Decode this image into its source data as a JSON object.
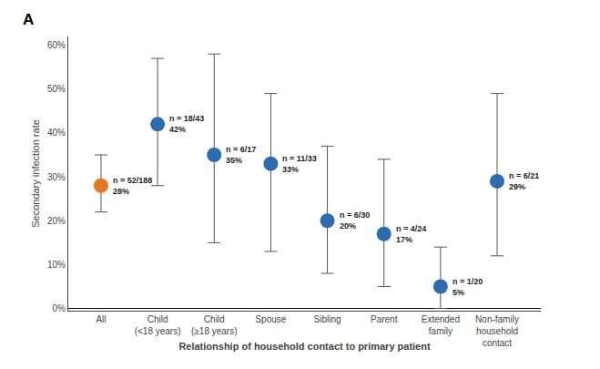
{
  "chart_data": {
    "type": "scatter",
    "categories": [
      "All",
      "Child\n(<18 years)",
      "Child\n(≥18 years)",
      "Spouse",
      "Sibling",
      "Parent",
      "Extended\nfamily",
      "Non-family\nhousehold\ncontact"
    ],
    "values": [
      0.28,
      0.42,
      0.35,
      0.33,
      0.2,
      0.17,
      0.05,
      0.29
    ],
    "ci_low": [
      0.22,
      0.28,
      0.15,
      0.13,
      0.08,
      0.05,
      0.0,
      0.12
    ],
    "ci_high": [
      0.35,
      0.57,
      0.58,
      0.49,
      0.37,
      0.34,
      0.14,
      0.49
    ],
    "value_labels": [
      "n = 52/188\n28%",
      "n = 18/43\n42%",
      "n = 6/17\n35%",
      "n = 11/33\n33%",
      "n = 6/30\n20%",
      "n = 4/24\n17%",
      "n = 1/20\n5%",
      "n = 6/21\n29%"
    ],
    "data_labels": true,
    "colors": [
      "#E87722",
      "#2B6CB0",
      "#2B6CB0",
      "#2B6CB0",
      "#2B6CB0",
      "#2B6CB0",
      "#2B6CB0",
      "#2B6CB0"
    ],
    "marker": "circle",
    "xlabel": "Relationship of household contact to primary patient",
    "ylabel": "Secondary infection rate",
    "ylim": [
      -0.005,
      0.62
    ],
    "yticks": [
      {
        "value": 0.0,
        "label": "0%"
      },
      {
        "value": 0.1,
        "label": "10%"
      },
      {
        "value": 0.2,
        "label": "20%"
      },
      {
        "value": 0.3,
        "label": "30%"
      },
      {
        "value": 0.4,
        "label": "40%"
      },
      {
        "value": 0.5,
        "label": "50%"
      },
      {
        "value": 0.6,
        "label": "60%"
      }
    ],
    "annotations": [
      {
        "text": "A"
      }
    ],
    "grid": false
  }
}
